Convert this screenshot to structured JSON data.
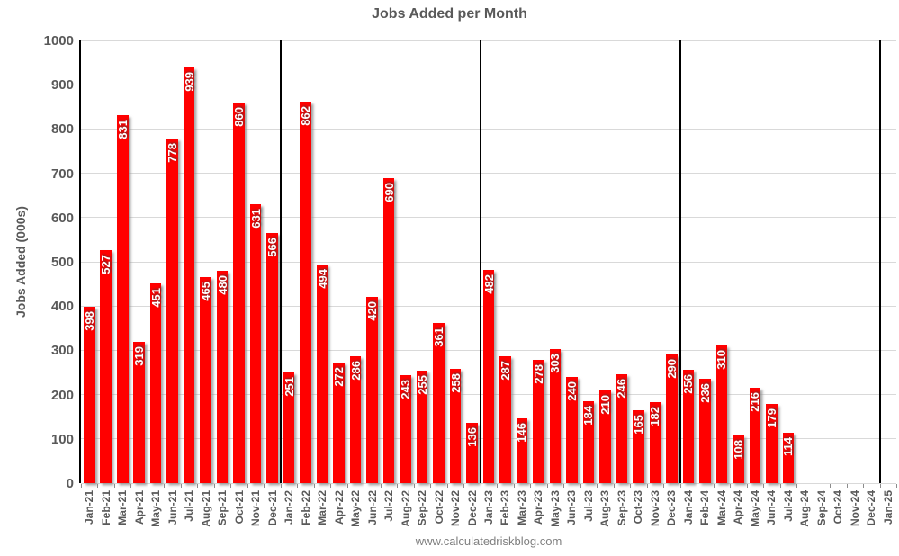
{
  "chart_data": {
    "type": "bar",
    "title": "Jobs Added per Month",
    "ylabel": "Jobs Added (000s)",
    "xlabel": "",
    "source": "www.calculatedriskblog.com",
    "ylim": [
      0,
      1000
    ],
    "ytick_step": 100,
    "grid": "horizontal",
    "legend": "none",
    "bar_color": "#ff0000",
    "value_label_color": "#ffffff",
    "year_divider_rule": "vertical black line after each December category",
    "categories": [
      "Jan-21",
      "Feb-21",
      "Mar-21",
      "Apr-21",
      "May-21",
      "Jun-21",
      "Jul-21",
      "Aug-21",
      "Sep-21",
      "Oct-21",
      "Nov-21",
      "Dec-21",
      "Jan-22",
      "Feb-22",
      "Mar-22",
      "Apr-22",
      "May-22",
      "Jun-22",
      "Jul-22",
      "Aug-22",
      "Sep-22",
      "Oct-22",
      "Nov-22",
      "Dec-22",
      "Jan-23",
      "Feb-23",
      "Mar-23",
      "Apr-23",
      "May-23",
      "Jun-23",
      "Jul-23",
      "Aug-23",
      "Sep-23",
      "Oct-23",
      "Nov-23",
      "Dec-23",
      "Jan-24",
      "Feb-24",
      "Mar-24",
      "Apr-24",
      "May-24",
      "Jun-24",
      "Jul-24",
      "Aug-24",
      "Sep-24",
      "Oct-24",
      "Nov-24",
      "Dec-24",
      "Jan-25"
    ],
    "values": [
      398,
      527,
      831,
      319,
      451,
      778,
      939,
      465,
      480,
      860,
      631,
      566,
      251,
      862,
      494,
      272,
      286,
      420,
      690,
      243,
      255,
      361,
      258,
      136,
      482,
      287,
      146,
      278,
      303,
      240,
      184,
      210,
      246,
      165,
      182,
      290,
      256,
      236,
      310,
      108,
      216,
      179,
      114,
      null,
      null,
      null,
      null,
      null,
      null
    ]
  }
}
